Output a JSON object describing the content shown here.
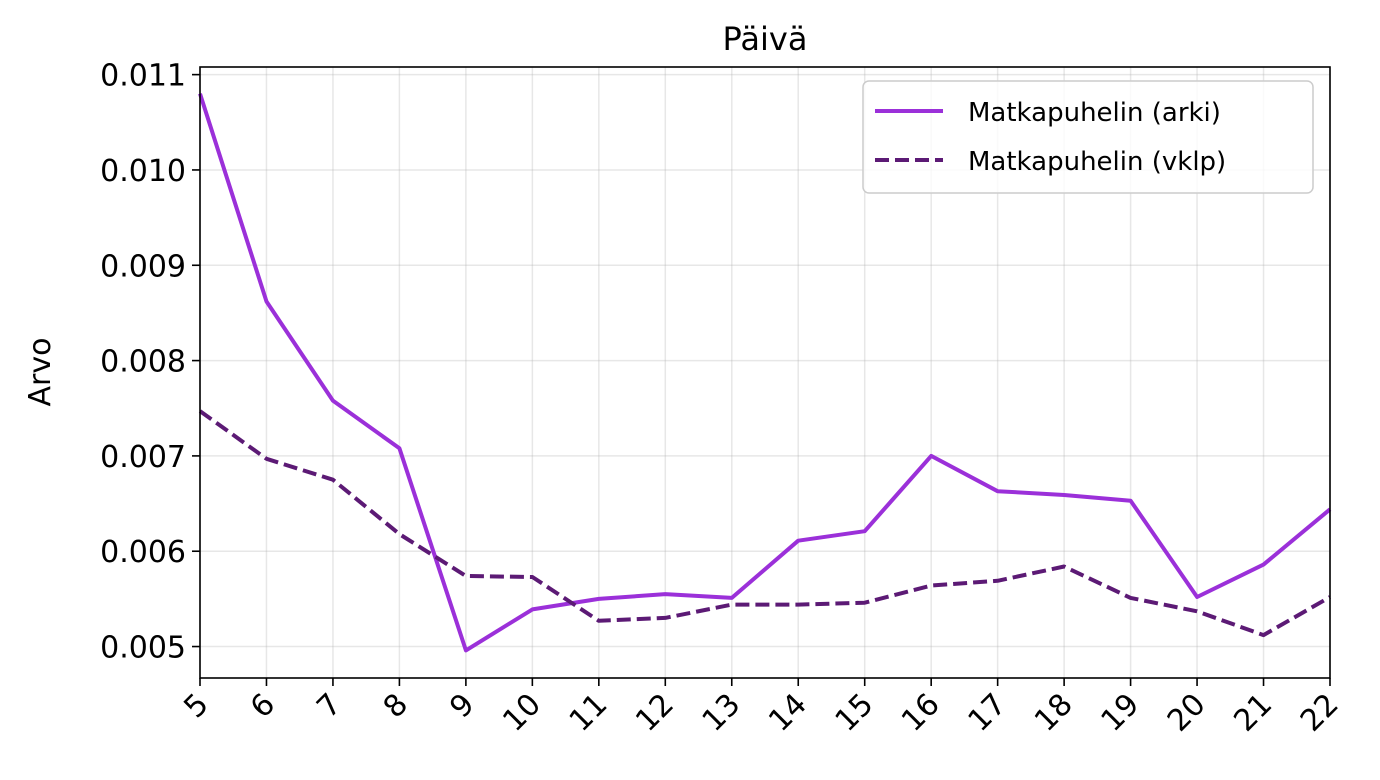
{
  "chart_data": {
    "type": "line",
    "title": "Päivä",
    "xlabel": "",
    "ylabel": "Arvo",
    "x": [
      5,
      6,
      7,
      8,
      9,
      10,
      11,
      12,
      13,
      14,
      15,
      16,
      17,
      18,
      19,
      20,
      21,
      22
    ],
    "xlim": [
      5,
      22
    ],
    "ylim": [
      0.00467,
      0.01108
    ],
    "yticks": [
      "0.005",
      "0.006",
      "0.007",
      "0.008",
      "0.009",
      "0.010",
      "0.011"
    ],
    "grid": true,
    "legend_position": "top-right",
    "series": [
      {
        "name": "Matkapuhelin (arki)",
        "style": "solid",
        "color": "#9b30d9",
        "values": [
          0.0108,
          0.00862,
          0.00758,
          0.00708,
          0.00496,
          0.00539,
          0.0055,
          0.00555,
          0.00551,
          0.00611,
          0.00621,
          0.007,
          0.00663,
          0.00659,
          0.00653,
          0.00552,
          0.00586,
          0.00644
        ]
      },
      {
        "name": "Matkapuhelin (vklp)",
        "style": "dashed",
        "color": "#5c1a75",
        "values": [
          0.00747,
          0.00697,
          0.00675,
          0.00618,
          0.00574,
          0.00573,
          0.00527,
          0.0053,
          0.00544,
          0.00544,
          0.00546,
          0.00564,
          0.00569,
          0.00584,
          0.00551,
          0.00537,
          0.00512,
          0.00552
        ]
      }
    ]
  }
}
